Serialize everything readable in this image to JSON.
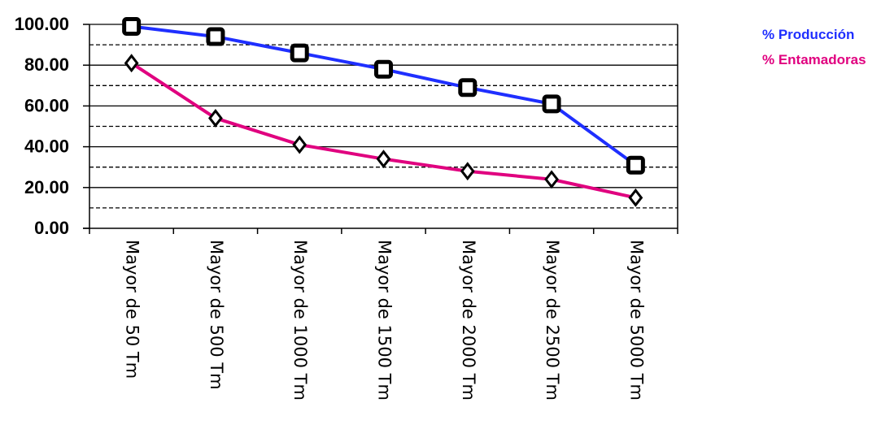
{
  "chart_data": {
    "type": "line",
    "title": "",
    "xlabel": "",
    "ylabel": "",
    "categories": [
      "Mayor de 50 Tm",
      "Mayor de 500 Tm",
      "Mayor de 1000 Tm",
      "Mayor de 1500 Tm",
      "Mayor de 2000 Tm",
      "Mayor de 2500 Tm",
      "Mayor de 5000 Tm"
    ],
    "y_ticks": [
      "0.00",
      "20.00",
      "40.00",
      "60.00",
      "80.00",
      "100.00"
    ],
    "ylim": [
      0,
      100
    ],
    "grid": "horizontal solid at major ticks, dashed at half steps",
    "legend_position": "top-right",
    "series": [
      {
        "name": "% Producción",
        "color": "#1f2fff",
        "marker": "square",
        "values": [
          99,
          94,
          86,
          78,
          69,
          61,
          31
        ]
      },
      {
        "name": "% Entamadoras",
        "color": "#e0007f",
        "marker": "diamond",
        "values": [
          81,
          54,
          41,
          34,
          28,
          24,
          15
        ]
      }
    ]
  }
}
